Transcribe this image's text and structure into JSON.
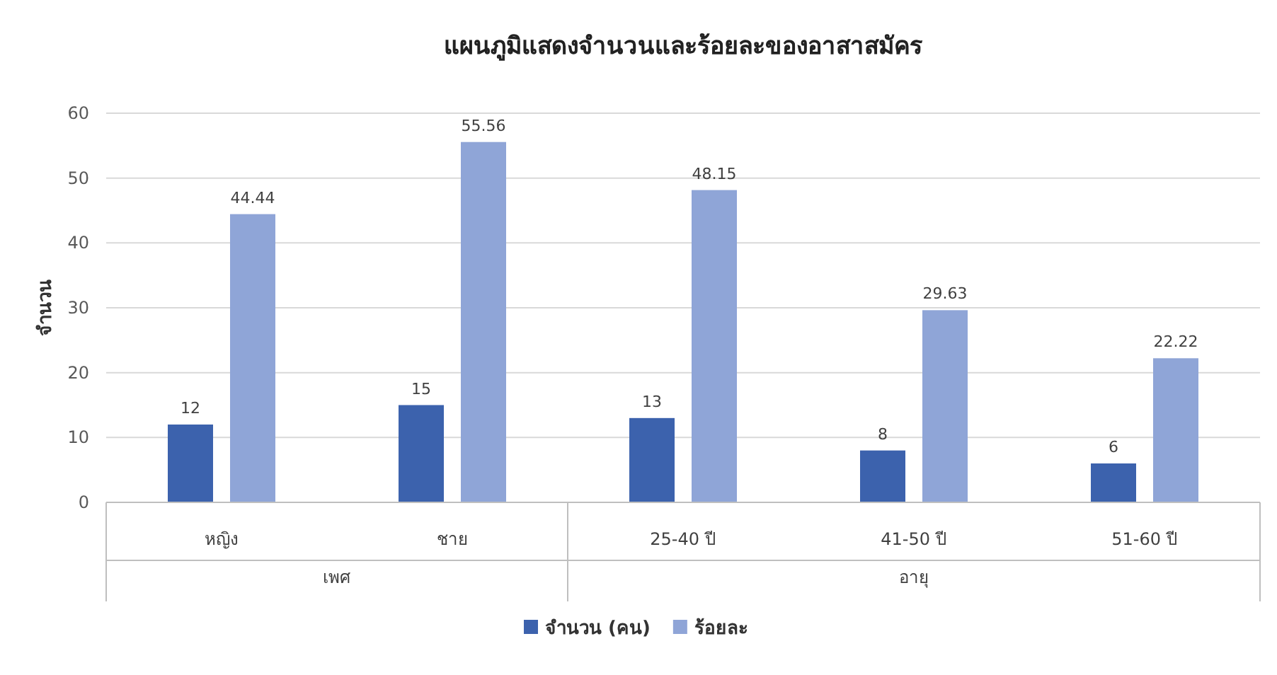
{
  "chart_data": {
    "type": "bar",
    "title": "แผนภูมิแสดงจำนวนและร้อยละของอาสาสมัคร",
    "ylabel": "จำนวน",
    "categories": [
      "หญิง",
      "ชาย",
      "25-40 ปี",
      "41-50 ปี",
      "51-60 ปี"
    ],
    "series": [
      {
        "name": "จำนวน (คน)",
        "color": "#3c62ad",
        "values": [
          12,
          15,
          13,
          8,
          6
        ]
      },
      {
        "name": "ร้อยละ",
        "color": "#8fa5d7",
        "values": [
          44.44,
          55.56,
          48.15,
          29.63,
          22.22
        ]
      }
    ],
    "annotations": [
      "เพศ",
      "อายุ"
    ],
    "ylim": [
      0,
      60
    ],
    "yticks": [
      0,
      10,
      20,
      30,
      40,
      50,
      60
    ],
    "grid": "y",
    "legend": "bottom",
    "data_labels": true
  }
}
